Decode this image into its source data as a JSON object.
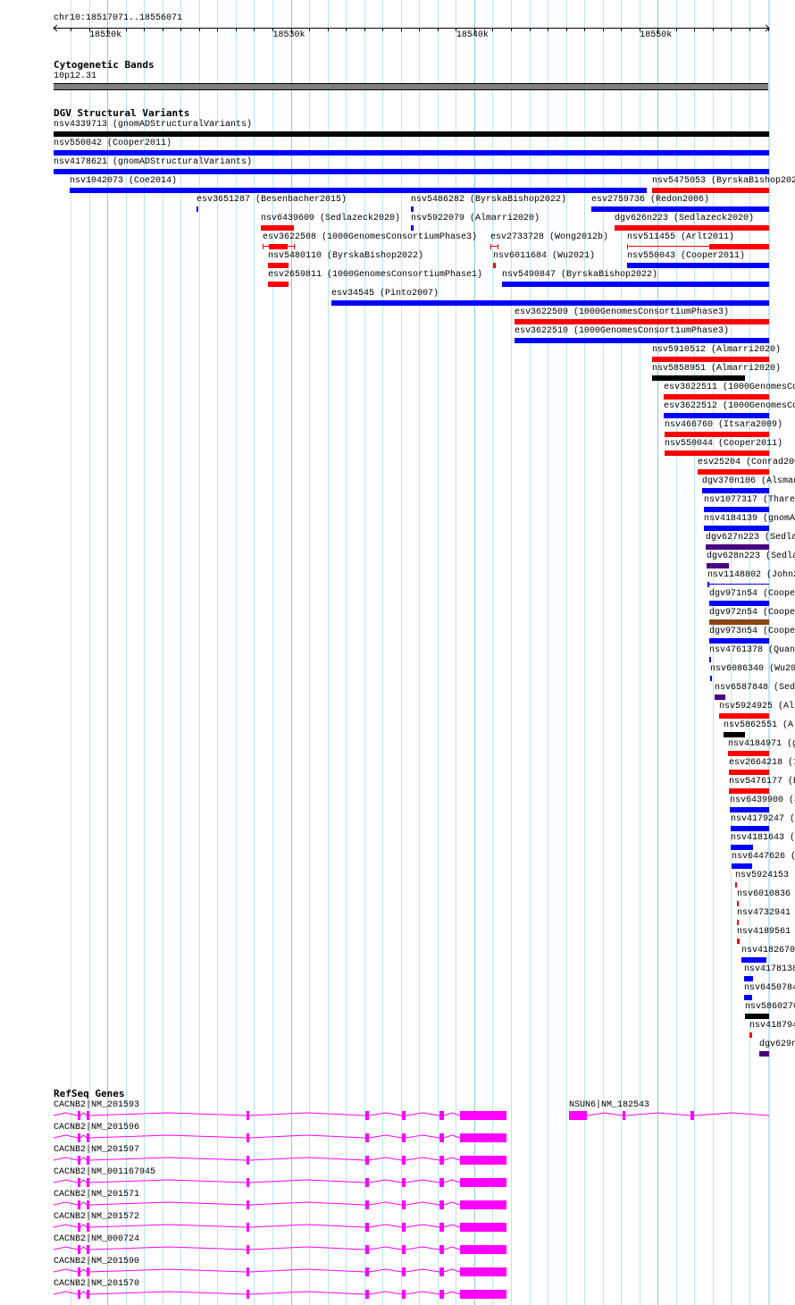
{
  "ruler": {
    "position_label": "chr10:18517071..18556071",
    "view_start_kb": 18517.071,
    "view_end_kb": 18556.071,
    "tick_labels": [
      {
        "kb": 18520,
        "label": "18520k"
      },
      {
        "kb": 18530,
        "label": "18530k"
      },
      {
        "kb": 18540,
        "label": "18540k"
      },
      {
        "kb": 18550,
        "label": "18550k"
      }
    ]
  },
  "cyto": {
    "title": "Cytogenetic Bands",
    "band": "10p12.31",
    "color": "#808080"
  },
  "colors": {
    "red": "#ff0000",
    "blue": "#0000ff",
    "black": "#000000",
    "purple": "#4b0082",
    "brown": "#8b4513",
    "gene": "#ff00ff",
    "grid": "#b8e8f0",
    "grid_major": "#88c8e8"
  },
  "dgv": {
    "title": "DGV Structural Variants",
    "rows": [
      [
        {
          "label": "nsv4339713 (gnomADStructuralVariants)",
          "color": "black",
          "start": 18517.07,
          "end": 18556.07
        }
      ],
      [
        {
          "label": "nsv550042 (Cooper2011)",
          "color": "blue",
          "start": 18517.07,
          "end": 18556.07
        }
      ],
      [
        {
          "label": "nsv4178621 (gnomADStructuralVariants)",
          "color": "blue",
          "start": 18517.07,
          "end": 18556.07
        }
      ],
      [
        {
          "label": "nsv1042073 (Coe2014)",
          "color": "blue",
          "start": 18517.95,
          "end": 18549.4
        },
        {
          "label": "nsv5475053 (ByrskaBishop2022)",
          "color": "red",
          "start": 18549.69,
          "end": 18556.07
        }
      ],
      [
        {
          "label": "esv3651287 (Besenbacher2015)",
          "color": "blue",
          "start": 18524.86,
          "end": 18524.96
        },
        {
          "label": "nsv5486282 (ByrskaBishop2022)",
          "color": "blue",
          "start": 18536.54,
          "end": 18536.69
        },
        {
          "label": "esv2759736 (Redon2006)",
          "color": "blue",
          "start": 18546.38,
          "end": 18556.07
        }
      ],
      [
        {
          "label": "nsv6439609 (Sedlazeck2020)",
          "color": "red",
          "start": 18528.37,
          "end": 18530.17
        },
        {
          "label": "nsv5922079 (Almarri2020)",
          "color": "blue",
          "start": 18536.54,
          "end": 18536.69
        },
        {
          "label": "dgv626n223 (Sedlazeck2020)",
          "color": "red",
          "start": 18547.64,
          "end": 18556.07
        }
      ],
      [
        {
          "label": "esv3622508 (1000GenomesConsortiumPhase3)",
          "color": "red",
          "start": 18528.46,
          "end": 18530.22,
          "thick_start": 18528.8,
          "thick_end": 18529.83,
          "style": "whisker"
        },
        {
          "label": "esv2733728 (Wong2012b)",
          "color": "red",
          "start": 18540.88,
          "end": 18541.32,
          "style": "whisker"
        },
        {
          "label": "nsv511455 (Arlt2011)",
          "color": "red",
          "start": 18548.33,
          "end": 18556.07,
          "thick_start": 18552.81,
          "thick_end": 18556.07,
          "style": "thin"
        }
      ],
      [
        {
          "label": "nsv5480110 (ByrskaBishop2022)",
          "color": "red",
          "start": 18528.75,
          "end": 18529.87
        },
        {
          "label": "nsv6011684 (Wu2021)",
          "color": "red",
          "start": 18541.02,
          "end": 18541.17
        },
        {
          "label": "nsv550043 (Cooper2011)",
          "color": "blue",
          "start": 18548.33,
          "end": 18556.07
        }
      ],
      [
        {
          "label": "esv2659811 (1000GenomesConsortiumPhase1)",
          "color": "red",
          "start": 18528.75,
          "end": 18529.87
        },
        {
          "label": "nsv5490847 (ByrskaBishop2022)",
          "color": "blue",
          "start": 18541.51,
          "end": 18556.07
        }
      ],
      [
        {
          "label": "esv34545 (Pinto2007)",
          "color": "blue",
          "start": 18532.21,
          "end": 18556.07
        }
      ],
      [
        {
          "label": "esv3622509 (1000GenomesConsortiumPhase3)",
          "color": "red",
          "start": 18542.19,
          "end": 18556.07
        }
      ],
      [
        {
          "label": "esv3622510 (1000GenomesConsortiumPhase3)",
          "color": "blue",
          "start": 18542.19,
          "end": 18556.07
        }
      ],
      [
        {
          "label": "nsv5910512 (Almarri2020)",
          "color": "red",
          "start": 18549.69,
          "end": 18556.07
        }
      ],
      [
        {
          "label": "nsv5858951 (Almarri2020)",
          "color": "black",
          "start": 18549.69,
          "end": 18554.75
        }
      ],
      [
        {
          "label": "esv3622511 (1000GenomesCo",
          "color": "red",
          "start": 18550.32,
          "end": 18556.07
        }
      ],
      [
        {
          "label": "esv3622512 (1000GenomesCo",
          "color": "blue",
          "start": 18550.32,
          "end": 18556.07
        }
      ],
      [
        {
          "label": "nsv466760 (Itsara2009)",
          "color": "red",
          "start": 18550.37,
          "end": 18556.07
        }
      ],
      [
        {
          "label": "nsv550044 (Cooper2011)",
          "color": "red",
          "start": 18550.37,
          "end": 18556.07
        }
      ],
      [
        {
          "label": "esv25204 (Conrad200",
          "color": "red",
          "start": 18552.17,
          "end": 18556.07
        }
      ],
      [
        {
          "label": "dgv370n106 (Alsmad",
          "color": "blue",
          "start": 18552.42,
          "end": 18556.07
        }
      ],
      [
        {
          "label": "nsv1077317 (Thare",
          "color": "blue",
          "start": 18552.51,
          "end": 18556.07
        }
      ],
      [
        {
          "label": "nsv4184139 (gnomA",
          "color": "blue",
          "start": 18552.51,
          "end": 18556.07
        }
      ],
      [
        {
          "label": "dgv627n223 (Sedla",
          "color": "purple",
          "start": 18552.61,
          "end": 18556.07
        }
      ],
      [
        {
          "label": "dgv628n223 (Sedla",
          "color": "purple",
          "start": 18552.66,
          "end": 18553.88
        }
      ],
      [
        {
          "label": "nsv1148802 (John2",
          "color": "blue",
          "start": 18552.71,
          "end": 18556.07,
          "thick_start": 18552.71,
          "thick_end": 18552.76,
          "style": "thin"
        }
      ],
      [
        {
          "label": "dgv971n54 (Coope",
          "color": "blue",
          "start": 18552.81,
          "end": 18556.07
        }
      ],
      [
        {
          "label": "dgv972n54 (Coope",
          "color": "brown",
          "start": 18552.81,
          "end": 18556.07
        }
      ],
      [
        {
          "label": "dgv973n54 (Coope",
          "color": "blue",
          "start": 18552.81,
          "end": 18556.07
        }
      ],
      [
        {
          "label": "nsv4761378 (Quan",
          "color": "blue",
          "start": 18552.81,
          "end": 18552.9
        }
      ],
      [
        {
          "label": "nsv6086340 (Wu20",
          "color": "blue",
          "start": 18552.86,
          "end": 18552.95
        }
      ],
      [
        {
          "label": "nsv6587848 (Sed",
          "color": "purple",
          "start": 18553.1,
          "end": 18553.68
        }
      ],
      [
        {
          "label": "nsv5924925 (Al",
          "color": "red",
          "start": 18553.34,
          "end": 18556.07
        }
      ],
      [
        {
          "label": "nsv5862551 (A",
          "color": "black",
          "start": 18553.58,
          "end": 18554.75
        }
      ],
      [
        {
          "label": "nsv4184971 (g",
          "color": "red",
          "start": 18553.83,
          "end": 18556.07
        }
      ],
      [
        {
          "label": "esv2664218 (1",
          "color": "red",
          "start": 18553.88,
          "end": 18556.07
        }
      ],
      [
        {
          "label": "nsv5476177 (B",
          "color": "red",
          "start": 18553.88,
          "end": 18556.07
        }
      ],
      [
        {
          "label": "nsv6439900 (S",
          "color": "blue",
          "start": 18553.93,
          "end": 18556.07
        }
      ],
      [
        {
          "label": "nsv4179247 (",
          "color": "blue",
          "start": 18553.97,
          "end": 18556.07
        }
      ],
      [
        {
          "label": "nsv4181643 (",
          "color": "blue",
          "start": 18553.97,
          "end": 18555.19
        }
      ],
      [
        {
          "label": "nsv6447626 (",
          "color": "blue",
          "start": 18554.02,
          "end": 18555.14
        }
      ],
      [
        {
          "label": "nsv5924153",
          "color": "red",
          "start": 18554.22,
          "end": 18554.31
        }
      ],
      [
        {
          "label": "nsv6010836",
          "color": "red",
          "start": 18554.31,
          "end": 18554.41
        }
      ],
      [
        {
          "label": "nsv4732941",
          "color": "red",
          "start": 18554.31,
          "end": 18554.41
        }
      ],
      [
        {
          "label": "nsv4189561",
          "color": "red",
          "start": 18554.31,
          "end": 18554.46
        }
      ],
      [
        {
          "label": "nsv4182670",
          "color": "blue",
          "start": 18554.56,
          "end": 18555.92
        }
      ],
      [
        {
          "label": "nsv4178138",
          "color": "blue",
          "start": 18554.7,
          "end": 18555.19
        }
      ],
      [
        {
          "label": "nsv6450784",
          "color": "blue",
          "start": 18554.7,
          "end": 18555.14
        }
      ],
      [
        {
          "label": "nsv5860270",
          "color": "black",
          "start": 18554.75,
          "end": 18556.07
        }
      ],
      [
        {
          "label": "nsv418794",
          "color": "red",
          "start": 18555.0,
          "end": 18555.14
        }
      ],
      [
        {
          "label": "dgv629n",
          "color": "purple",
          "start": 18555.53,
          "end": 18556.07
        }
      ]
    ]
  },
  "genes": {
    "title": "RefSeq Genes",
    "rows": [
      [
        {
          "label": "CACNB2|NM_201593",
          "start": 18517.07,
          "end": 18541.75,
          "exons": [
            [
              18518.38,
              18518.53
            ],
            [
              18518.87,
              18519.02
            ],
            [
              18527.59,
              18527.73
            ],
            [
              18534.06,
              18534.26
            ],
            [
              18536.06,
              18536.25
            ],
            [
              18538.1,
              18538.35
            ],
            [
              18539.22,
              18541.75
            ]
          ]
        },
        {
          "label": "NSUN6|NM_182543",
          "start": 18545.16,
          "end": 18556.07,
          "exons": [
            [
              18545.16,
              18546.14
            ],
            [
              18548.08,
              18548.23
            ],
            [
              18551.78,
              18551.98
            ]
          ]
        }
      ],
      [
        {
          "label": "CACNB2|NM_201596",
          "start": 18517.07,
          "end": 18541.75,
          "exons": [
            [
              18518.38,
              18518.53
            ],
            [
              18518.87,
              18519.02
            ],
            [
              18527.59,
              18527.73
            ],
            [
              18534.06,
              18534.26
            ],
            [
              18536.06,
              18536.25
            ],
            [
              18538.1,
              18538.35
            ],
            [
              18539.22,
              18541.75
            ]
          ]
        }
      ],
      [
        {
          "label": "CACNB2|NM_201597",
          "start": 18517.07,
          "end": 18541.75,
          "exons": [
            [
              18518.38,
              18518.53
            ],
            [
              18518.87,
              18519.02
            ],
            [
              18527.59,
              18527.73
            ],
            [
              18534.06,
              18534.26
            ],
            [
              18536.06,
              18536.25
            ],
            [
              18538.1,
              18538.35
            ],
            [
              18539.22,
              18541.75
            ]
          ]
        }
      ],
      [
        {
          "label": "CACNB2|NM_001167945",
          "start": 18517.07,
          "end": 18541.75,
          "exons": [
            [
              18518.38,
              18518.53
            ],
            [
              18518.87,
              18519.02
            ],
            [
              18527.59,
              18527.73
            ],
            [
              18534.06,
              18534.26
            ],
            [
              18536.06,
              18536.25
            ],
            [
              18538.1,
              18538.35
            ],
            [
              18539.22,
              18541.75
            ]
          ]
        }
      ],
      [
        {
          "label": "CACNB2|NM_201571",
          "start": 18517.07,
          "end": 18541.75,
          "exons": [
            [
              18518.38,
              18518.53
            ],
            [
              18518.87,
              18519.02
            ],
            [
              18527.59,
              18527.73
            ],
            [
              18534.06,
              18534.26
            ],
            [
              18536.06,
              18536.25
            ],
            [
              18538.1,
              18538.35
            ],
            [
              18539.22,
              18541.75
            ]
          ]
        }
      ],
      [
        {
          "label": "CACNB2|NM_201572",
          "start": 18517.07,
          "end": 18541.75,
          "exons": [
            [
              18518.38,
              18518.53
            ],
            [
              18518.87,
              18519.02
            ],
            [
              18527.59,
              18527.73
            ],
            [
              18534.06,
              18534.26
            ],
            [
              18536.06,
              18536.25
            ],
            [
              18538.1,
              18538.35
            ],
            [
              18539.22,
              18541.75
            ]
          ]
        }
      ],
      [
        {
          "label": "CACNB2|NM_000724",
          "start": 18517.07,
          "end": 18541.75,
          "exons": [
            [
              18518.38,
              18518.53
            ],
            [
              18518.87,
              18519.02
            ],
            [
              18527.59,
              18527.73
            ],
            [
              18534.06,
              18534.26
            ],
            [
              18536.06,
              18536.25
            ],
            [
              18538.1,
              18538.35
            ],
            [
              18539.22,
              18541.75
            ]
          ]
        }
      ],
      [
        {
          "label": "CACNB2|NM_201590",
          "start": 18517.07,
          "end": 18541.75,
          "exons": [
            [
              18518.38,
              18518.53
            ],
            [
              18518.87,
              18519.02
            ],
            [
              18527.59,
              18527.73
            ],
            [
              18534.06,
              18534.26
            ],
            [
              18536.06,
              18536.25
            ],
            [
              18538.1,
              18538.35
            ],
            [
              18539.22,
              18541.75
            ]
          ]
        }
      ],
      [
        {
          "label": "CACNB2|NM_201570",
          "start": 18517.07,
          "end": 18541.75,
          "exons": [
            [
              18518.38,
              18518.53
            ],
            [
              18518.87,
              18519.02
            ],
            [
              18527.59,
              18527.73
            ],
            [
              18534.06,
              18534.26
            ],
            [
              18536.06,
              18536.25
            ],
            [
              18538.1,
              18538.35
            ],
            [
              18539.22,
              18541.75
            ]
          ]
        }
      ]
    ]
  }
}
